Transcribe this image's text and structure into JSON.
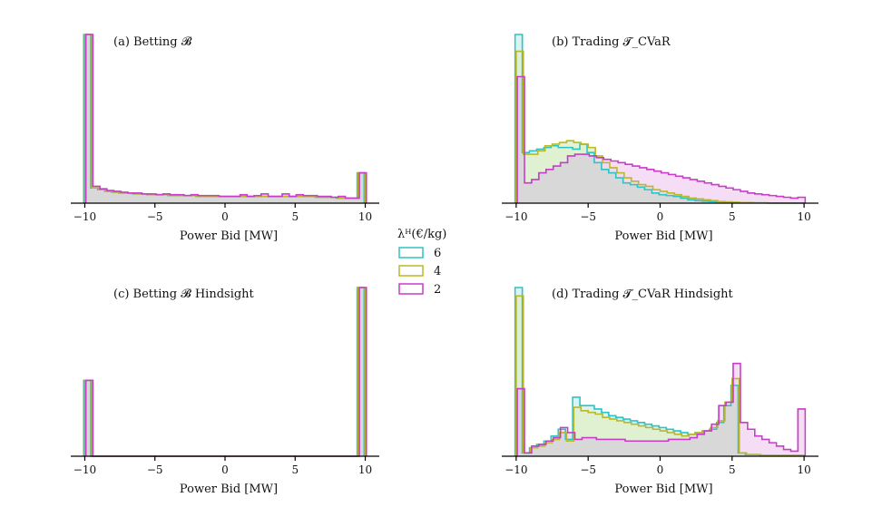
{
  "legend": {
    "title": "λᴴ(€/kg)",
    "entries": [
      {
        "label": "6",
        "color": "#2ec4c4"
      },
      {
        "label": "4",
        "color": "#b8b82a"
      },
      {
        "label": "2",
        "color": "#c83cc8"
      }
    ]
  },
  "chart_data": [
    {
      "type": "histogram",
      "title": "(a) Betting 𝓑",
      "xlabel": "Power Bid [MW]",
      "xlim": [
        -11,
        11
      ],
      "xticks": [
        -10,
        -5,
        0,
        5,
        10
      ],
      "tick_labels": [
        "−10",
        "−5",
        "0",
        "5",
        "10"
      ],
      "bins": 40,
      "series": [
        {
          "color": "#2ec4c4",
          "values": [
            1.0,
            0.09,
            0.08,
            0.07,
            0.065,
            0.06,
            0.06,
            0.055,
            0.055,
            0.05,
            0.05,
            0.05,
            0.045,
            0.045,
            0.045,
            0.045,
            0.04,
            0.04,
            0.04,
            0.04,
            0.04,
            0.04,
            0.04,
            0.04,
            0.04,
            0.04,
            0.04,
            0.04,
            0.04,
            0.04,
            0.04,
            0.04,
            0.04,
            0.035,
            0.035,
            0.035,
            0.03,
            0.03,
            0.03,
            0.18
          ]
        },
        {
          "color": "#b8b82a",
          "values": [
            1.0,
            0.09,
            0.08,
            0.07,
            0.065,
            0.06,
            0.06,
            0.055,
            0.055,
            0.05,
            0.05,
            0.05,
            0.045,
            0.045,
            0.045,
            0.045,
            0.04,
            0.04,
            0.04,
            0.04,
            0.04,
            0.04,
            0.04,
            0.04,
            0.04,
            0.04,
            0.04,
            0.04,
            0.04,
            0.04,
            0.04,
            0.04,
            0.04,
            0.035,
            0.035,
            0.035,
            0.03,
            0.03,
            0.03,
            0.18
          ]
        },
        {
          "color": "#c83cc8",
          "values": [
            1.0,
            0.1,
            0.085,
            0.075,
            0.07,
            0.065,
            0.06,
            0.06,
            0.055,
            0.055,
            0.05,
            0.055,
            0.05,
            0.05,
            0.045,
            0.05,
            0.045,
            0.045,
            0.045,
            0.04,
            0.04,
            0.04,
            0.05,
            0.04,
            0.045,
            0.055,
            0.04,
            0.04,
            0.055,
            0.04,
            0.05,
            0.045,
            0.045,
            0.04,
            0.04,
            0.035,
            0.04,
            0.03,
            0.03,
            0.18
          ]
        }
      ]
    },
    {
      "type": "histogram",
      "title": "(b) Trading 𝓣_CVaR",
      "xlabel": "Power Bid [MW]",
      "xlim": [
        -11,
        11
      ],
      "xticks": [
        -10,
        -5,
        0,
        5,
        10
      ],
      "tick_labels": [
        "−10",
        "−5",
        "0",
        "5",
        "10"
      ],
      "bins": 40,
      "series": [
        {
          "color": "#2ec4c4",
          "values": [
            1.0,
            0.3,
            0.31,
            0.32,
            0.33,
            0.34,
            0.33,
            0.33,
            0.32,
            0.35,
            0.3,
            0.24,
            0.2,
            0.18,
            0.15,
            0.12,
            0.11,
            0.095,
            0.08,
            0.06,
            0.05,
            0.045,
            0.04,
            0.03,
            0.02,
            0.015,
            0.012,
            0.01,
            0.008,
            0.006,
            0.005,
            0.004,
            0.003,
            0.002,
            0.002,
            0.001,
            0.001,
            0.001,
            0.001,
            0.001
          ]
        },
        {
          "color": "#b8b82a",
          "values": [
            0.9,
            0.29,
            0.29,
            0.31,
            0.34,
            0.35,
            0.36,
            0.37,
            0.36,
            0.35,
            0.33,
            0.28,
            0.24,
            0.21,
            0.18,
            0.15,
            0.13,
            0.11,
            0.1,
            0.08,
            0.07,
            0.06,
            0.05,
            0.04,
            0.03,
            0.025,
            0.02,
            0.015,
            0.01,
            0.008,
            0.006,
            0.004,
            0.003,
            0.002,
            0.002,
            0.001,
            0.001,
            0.001,
            0.001,
            0.001
          ]
        },
        {
          "color": "#c83cc8",
          "values": [
            0.75,
            0.12,
            0.14,
            0.18,
            0.2,
            0.22,
            0.24,
            0.28,
            0.29,
            0.29,
            0.28,
            0.27,
            0.26,
            0.25,
            0.24,
            0.23,
            0.22,
            0.21,
            0.2,
            0.19,
            0.18,
            0.17,
            0.16,
            0.15,
            0.14,
            0.13,
            0.12,
            0.11,
            0.1,
            0.09,
            0.08,
            0.07,
            0.06,
            0.055,
            0.05,
            0.045,
            0.04,
            0.035,
            0.03,
            0.035
          ]
        }
      ]
    },
    {
      "type": "histogram",
      "title": "(c) Betting 𝓑 Hindsight",
      "xlabel": "Power Bid [MW]",
      "xlim": [
        -11,
        11
      ],
      "xticks": [
        -10,
        -5,
        0,
        5,
        10
      ],
      "tick_labels": [
        "−10",
        "−5",
        "0",
        "5",
        "10"
      ],
      "bins": 40,
      "series": [
        {
          "color": "#2ec4c4",
          "values": [
            0.45,
            0,
            0,
            0,
            0,
            0,
            0,
            0,
            0,
            0,
            0,
            0,
            0,
            0,
            0,
            0,
            0,
            0,
            0,
            0,
            0,
            0,
            0,
            0,
            0,
            0,
            0,
            0,
            0,
            0,
            0,
            0,
            0,
            0,
            0,
            0,
            0,
            0,
            0,
            1.0
          ]
        },
        {
          "color": "#b8b82a",
          "values": [
            0.45,
            0,
            0,
            0,
            0,
            0,
            0,
            0,
            0,
            0,
            0,
            0,
            0,
            0,
            0,
            0,
            0,
            0,
            0,
            0,
            0,
            0,
            0,
            0,
            0,
            0,
            0,
            0,
            0,
            0,
            0,
            0,
            0,
            0,
            0,
            0,
            0,
            0,
            0,
            1.0
          ]
        },
        {
          "color": "#c83cc8",
          "values": [
            0.45,
            0,
            0,
            0,
            0,
            0,
            0,
            0,
            0,
            0,
            0,
            0,
            0,
            0,
            0,
            0,
            0,
            0,
            0,
            0,
            0,
            0,
            0,
            0,
            0,
            0,
            0,
            0,
            0,
            0,
            0,
            0,
            0,
            0,
            0,
            0,
            0,
            0,
            0,
            1.0
          ]
        }
      ]
    },
    {
      "type": "histogram",
      "title": "(d) Trading 𝓣_CVaR Hindsight",
      "xlabel": "Power Bid [MW]",
      "xlim": [
        -11,
        11
      ],
      "xticks": [
        -10,
        -5,
        0,
        5,
        10
      ],
      "tick_labels": [
        "−10",
        "−5",
        "0",
        "5",
        "10"
      ],
      "bins": 40,
      "series": [
        {
          "color": "#2ec4c4",
          "values": [
            1.0,
            0.02,
            0.05,
            0.07,
            0.09,
            0.12,
            0.16,
            0.1,
            0.35,
            0.3,
            0.3,
            0.28,
            0.26,
            0.24,
            0.23,
            0.22,
            0.21,
            0.2,
            0.19,
            0.18,
            0.17,
            0.16,
            0.15,
            0.14,
            0.13,
            0.14,
            0.15,
            0.16,
            0.2,
            0.3,
            0.42,
            0.02,
            0.01,
            0.01,
            0.005,
            0.005,
            0.005,
            0.005,
            0.005,
            0.005
          ]
        },
        {
          "color": "#b8b82a",
          "values": [
            0.95,
            0.02,
            0.05,
            0.06,
            0.08,
            0.1,
            0.14,
            0.09,
            0.29,
            0.27,
            0.26,
            0.25,
            0.23,
            0.22,
            0.21,
            0.2,
            0.19,
            0.18,
            0.17,
            0.16,
            0.15,
            0.14,
            0.13,
            0.12,
            0.13,
            0.14,
            0.15,
            0.17,
            0.21,
            0.32,
            0.46,
            0.02,
            0.01,
            0.01,
            0.005,
            0.005,
            0.005,
            0.005,
            0.005,
            0.005
          ]
        },
        {
          "color": "#c83cc8",
          "values": [
            0.4,
            0.02,
            0.06,
            0.07,
            0.09,
            0.11,
            0.17,
            0.14,
            0.1,
            0.11,
            0.11,
            0.1,
            0.1,
            0.1,
            0.1,
            0.09,
            0.09,
            0.09,
            0.09,
            0.09,
            0.09,
            0.1,
            0.1,
            0.1,
            0.11,
            0.13,
            0.15,
            0.19,
            0.3,
            0.32,
            0.55,
            0.2,
            0.16,
            0.12,
            0.1,
            0.08,
            0.06,
            0.04,
            0.03,
            0.28
          ]
        }
      ]
    }
  ]
}
